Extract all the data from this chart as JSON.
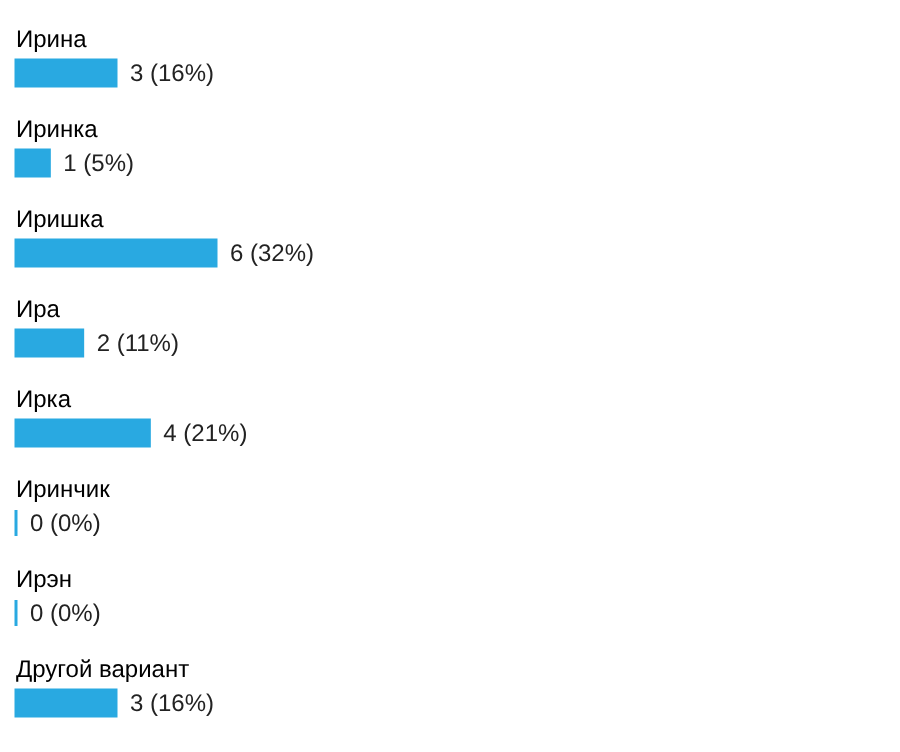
{
  "chart_data": {
    "type": "bar",
    "orientation": "horizontal",
    "categories": [
      "Ирина",
      "Иринка",
      "Иришка",
      "Ира",
      "Ирка",
      "Иринчик",
      "Ирэн",
      "Другой вариант"
    ],
    "values": [
      3,
      1,
      6,
      2,
      4,
      0,
      0,
      3
    ],
    "value_labels": [
      "3 (16%)",
      "1 (5%)",
      "6 (32%)",
      "2 (11%)",
      "4 (21%)",
      "0 (0%)",
      "0 (0%)",
      "3 (16%)"
    ],
    "color": "#29a9e1"
  }
}
